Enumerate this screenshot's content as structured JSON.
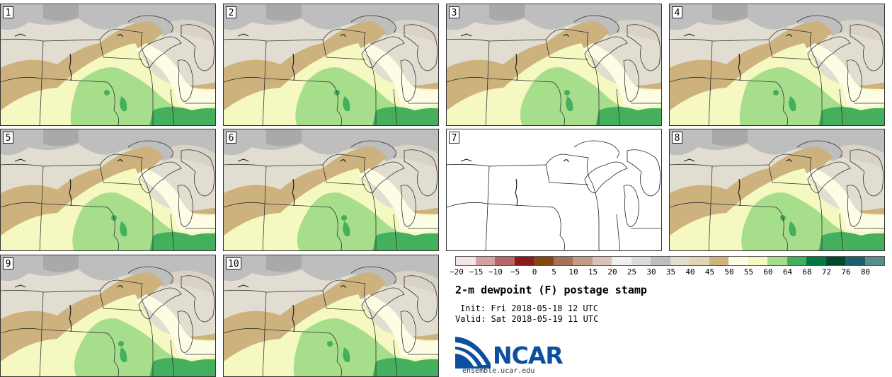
{
  "panels": [
    {
      "label": "1",
      "kind": "map"
    },
    {
      "label": "2",
      "kind": "map"
    },
    {
      "label": "3",
      "kind": "map"
    },
    {
      "label": "4",
      "kind": "map"
    },
    {
      "label": "5",
      "kind": "map"
    },
    {
      "label": "6",
      "kind": "map"
    },
    {
      "label": "7",
      "kind": "blank"
    },
    {
      "label": "8",
      "kind": "map"
    },
    {
      "label": "9",
      "kind": "map"
    },
    {
      "label": "10",
      "kind": "map"
    }
  ],
  "colorbar": {
    "colors": [
      "#f5e6e6",
      "#d4a2a2",
      "#b56565",
      "#8b1a1a",
      "#8b4513",
      "#a57355",
      "#c29c88",
      "#dbc2b6",
      "#f0f0f0",
      "#dcdcdc",
      "#bebebe",
      "#e1ddd1",
      "#e0d4b6",
      "#cdb27d",
      "#fdfde6",
      "#f5f8c0",
      "#a7de8b",
      "#44b05d",
      "#007a3e",
      "#00492e",
      "#1d5f6e",
      "#5a8c8c"
    ],
    "tick_labels": [
      "−20",
      "−15",
      "−10",
      "−5",
      "0",
      "5",
      "10",
      "15",
      "20",
      "25",
      "30",
      "35",
      "40",
      "45",
      "50",
      "55",
      "60",
      "64",
      "68",
      "72",
      "76",
      "80"
    ]
  },
  "title": "2-m dewpoint (F) postage stamp",
  "init": "Init: Fri 2018-05-18 12 UTC",
  "valid": "Valid: Sat 2018-05-19 11 UTC",
  "logo": {
    "text": "NCAR",
    "url": "ensemble.ucar.edu"
  }
}
